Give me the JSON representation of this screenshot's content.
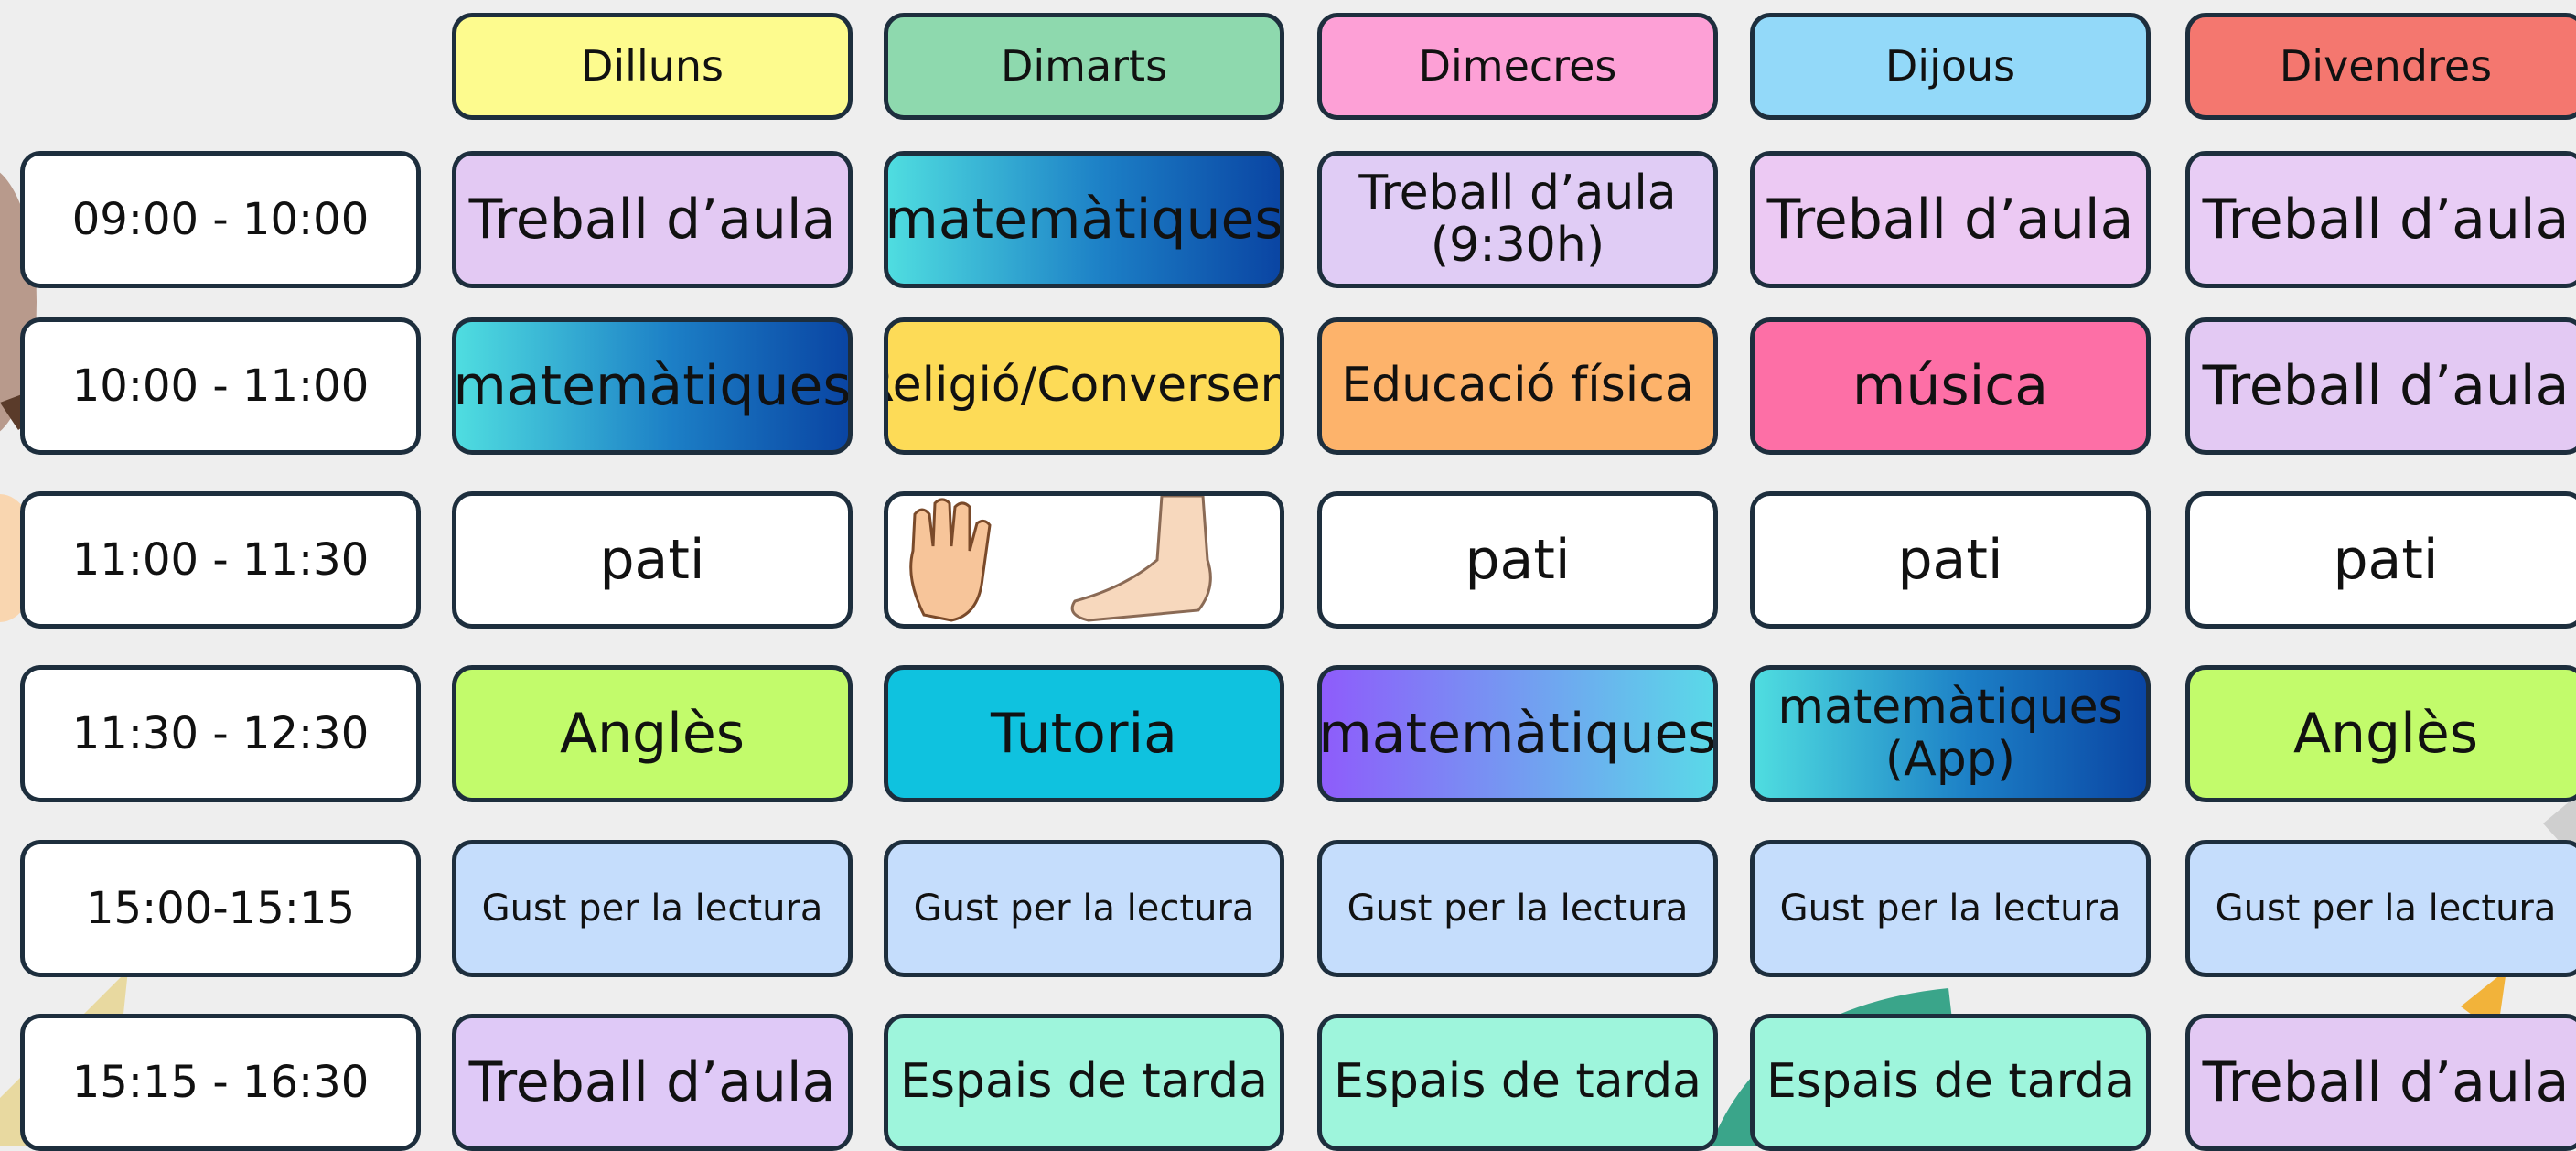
{
  "days": [
    "Dilluns",
    "Dimarts",
    "Dimecres",
    "Dijous",
    "Divendres"
  ],
  "rows": [
    {
      "time": "09:00 - 10:00",
      "cells": [
        "Treball d’aula",
        "matemàtiques",
        "Treball d’aula\n(9:30h)",
        "Treball d’aula",
        "Treball d’aula"
      ]
    },
    {
      "time": "10:00 - 11:00",
      "cells": [
        "matemàtiques",
        "Religió/Conversem",
        "Educació física",
        "música",
        "Treball d’aula"
      ]
    },
    {
      "time": "11:00 - 11:30",
      "cells": [
        "pati",
        null,
        "pati",
        "pati",
        "pati"
      ]
    },
    {
      "time": "11:30 - 12:30",
      "cells": [
        "Anglès",
        "Tutoria",
        "matemàtiques",
        "matemàtiques\n(App)",
        "Anglès"
      ]
    },
    {
      "time": "15:00-15:15",
      "cells": [
        "Gust per la lectura",
        "Gust per la lectura",
        "Gust per la lectura",
        "Gust per la lectura",
        "Gust per la lectura"
      ]
    },
    {
      "time": "15:15 - 16:30",
      "cells": [
        "Treball d’aula",
        "Espais de tarda",
        "Espais de tarda",
        "Espais de tarda",
        "Treball d’aula"
      ]
    }
  ]
}
